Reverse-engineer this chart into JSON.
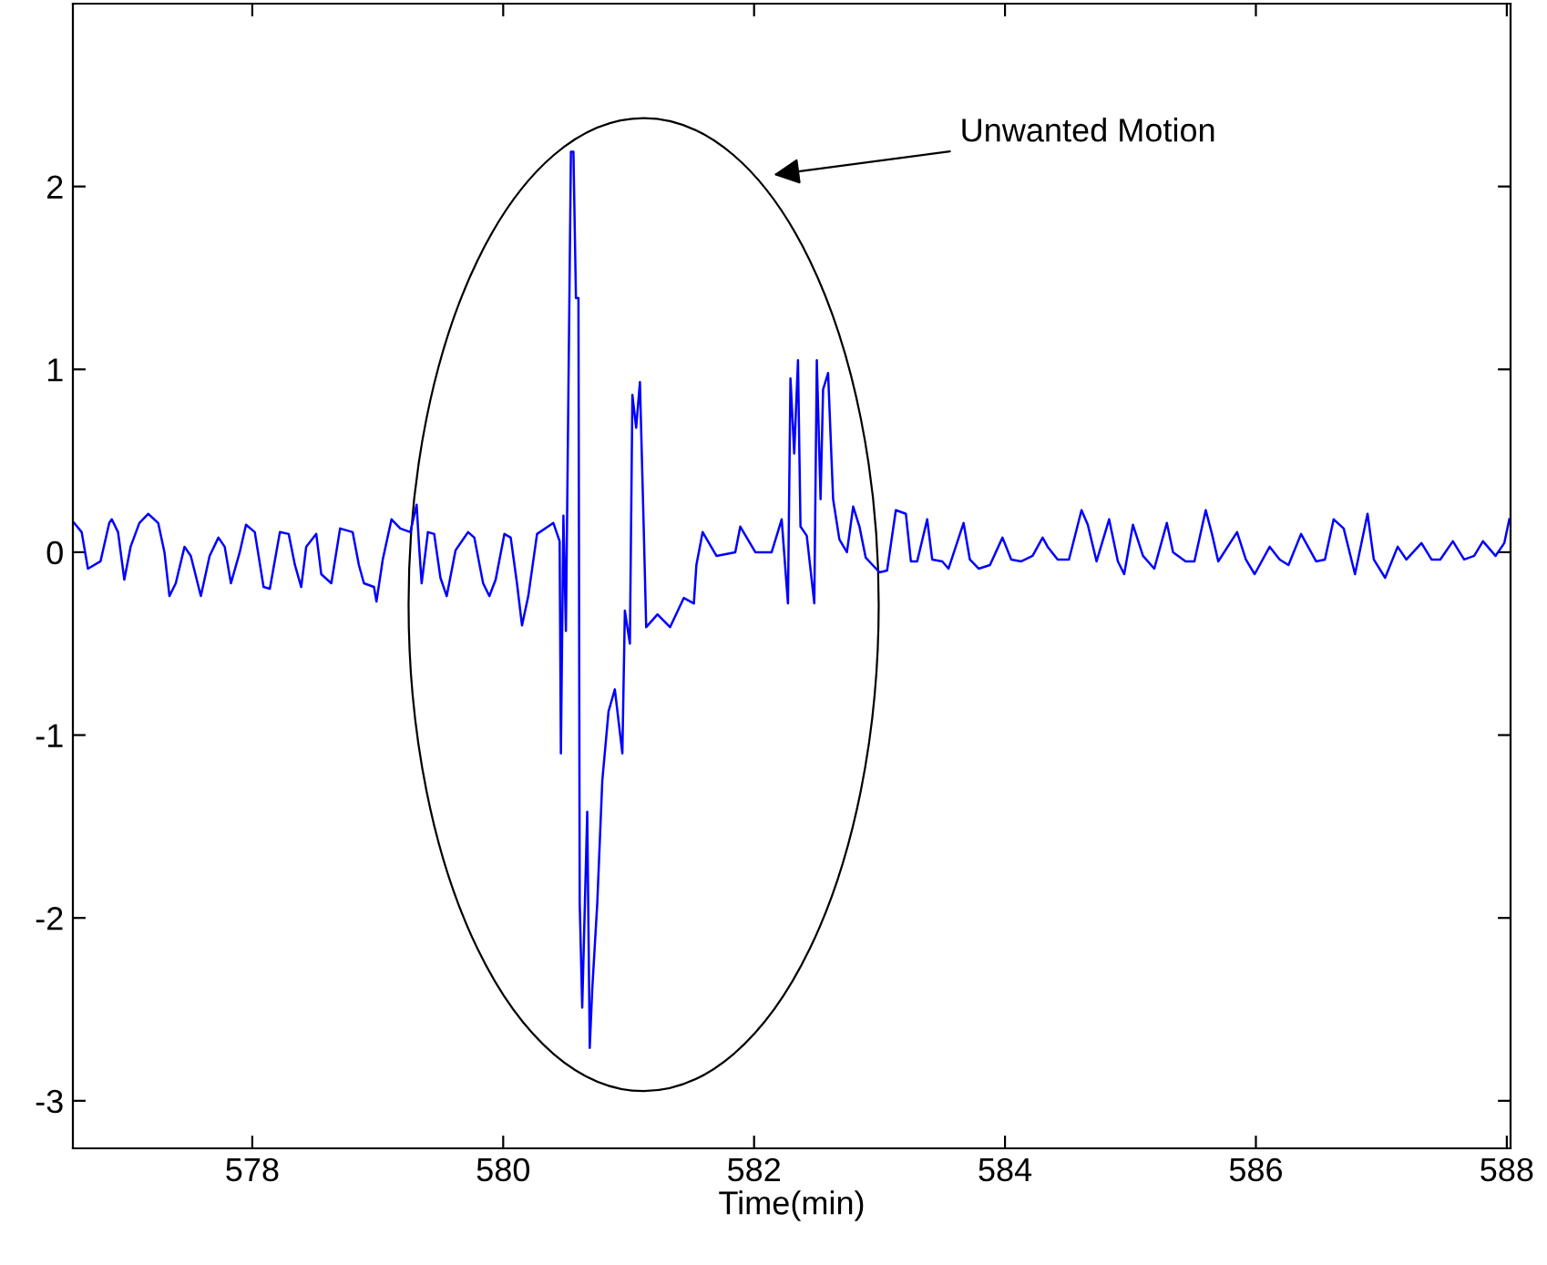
{
  "chart_data": {
    "type": "line",
    "xlabel": "Time(min)",
    "xlim": [
      576.57,
      588.03
    ],
    "xticks": [
      578,
      580,
      582,
      584,
      586,
      588
    ],
    "ylim": [
      -3.26,
      3.0
    ],
    "yticks": [
      -3,
      -2,
      -1,
      0,
      1,
      2
    ],
    "grid": false,
    "legend": false,
    "marker": "none",
    "line_style": "solid",
    "annotations": [
      "Unwanted Motion"
    ],
    "series": [
      {
        "color": "#0000ff",
        "x": [
          576.58,
          576.64,
          576.69,
          576.79,
          576.86,
          576.88,
          576.93,
          576.98,
          577.03,
          577.1,
          577.17,
          577.25,
          577.3,
          577.34,
          577.39,
          577.46,
          577.51,
          577.59,
          577.66,
          577.73,
          577.78,
          577.83,
          577.9,
          577.95,
          578.02,
          578.09,
          578.14,
          578.22,
          578.29,
          578.34,
          578.39,
          578.43,
          578.51,
          578.55,
          578.63,
          578.7,
          578.8,
          578.85,
          578.89,
          578.97,
          578.99,
          579.04,
          579.11,
          579.18,
          579.26,
          579.31,
          579.33,
          579.35,
          579.4,
          579.45,
          579.5,
          579.55,
          579.62,
          579.72,
          579.77,
          579.84,
          579.89,
          579.94,
          580.01,
          580.06,
          580.11,
          580.15,
          580.2,
          580.27,
          580.4,
          580.45,
          580.46,
          580.48,
          580.5,
          580.54,
          580.56,
          580.58,
          580.6,
          580.61,
          580.63,
          580.67,
          580.69,
          580.71,
          580.75,
          580.79,
          580.84,
          580.89,
          580.95,
          580.97,
          581.01,
          581.03,
          581.06,
          581.09,
          581.12,
          581.14,
          581.23,
          581.33,
          581.44,
          581.52,
          581.54,
          581.59,
          581.7,
          581.85,
          581.89,
          582.01,
          582.14,
          582.22,
          582.27,
          582.29,
          582.32,
          582.35,
          582.37,
          582.42,
          582.48,
          582.5,
          582.53,
          582.55,
          582.59,
          582.63,
          582.68,
          582.74,
          582.79,
          582.84,
          582.89,
          583.0,
          583.06,
          583.13,
          583.21,
          583.25,
          583.3,
          583.38,
          583.42,
          583.5,
          583.55,
          583.67,
          583.72,
          583.79,
          583.88,
          583.98,
          584.05,
          584.13,
          584.22,
          584.3,
          584.34,
          584.42,
          584.51,
          584.61,
          584.66,
          584.73,
          584.83,
          584.9,
          584.95,
          585.02,
          585.1,
          585.19,
          585.29,
          585.34,
          585.44,
          585.51,
          585.6,
          585.65,
          585.7,
          585.85,
          585.92,
          585.99,
          586.11,
          586.19,
          586.26,
          586.36,
          586.4,
          586.48,
          586.55,
          586.62,
          586.7,
          586.79,
          586.89,
          586.94,
          587.03,
          587.13,
          587.2,
          587.32,
          587.4,
          587.47,
          587.57,
          587.66,
          587.74,
          587.81,
          587.91,
          587.98,
          588.02
        ],
        "values": [
          0.16,
          0.11,
          -0.09,
          -0.05,
          0.16,
          0.18,
          0.11,
          -0.15,
          0.03,
          0.16,
          0.21,
          0.16,
          0.0,
          -0.24,
          -0.17,
          0.03,
          -0.02,
          -0.24,
          -0.02,
          0.08,
          0.03,
          -0.17,
          0.0,
          0.15,
          0.11,
          -0.19,
          -0.2,
          0.11,
          0.1,
          -0.07,
          -0.19,
          0.03,
          0.1,
          -0.12,
          -0.17,
          0.13,
          0.11,
          -0.07,
          -0.17,
          -0.19,
          -0.27,
          -0.04,
          0.18,
          0.13,
          0.11,
          0.26,
          0.03,
          -0.17,
          0.11,
          0.1,
          -0.14,
          -0.24,
          0.01,
          0.11,
          0.08,
          -0.17,
          -0.24,
          -0.15,
          0.1,
          0.08,
          -0.17,
          -0.4,
          -0.24,
          0.1,
          0.16,
          0.06,
          -1.1,
          0.2,
          -0.43,
          2.19,
          2.19,
          1.39,
          1.39,
          -1.92,
          -2.49,
          -1.42,
          -2.71,
          -2.39,
          -1.92,
          -1.25,
          -0.87,
          -0.75,
          -1.1,
          -0.32,
          -0.5,
          0.86,
          0.68,
          0.93,
          0.14,
          -0.41,
          -0.34,
          -0.41,
          -0.25,
          -0.28,
          -0.07,
          0.11,
          -0.02,
          0.0,
          0.14,
          0.0,
          0.0,
          0.18,
          -0.28,
          0.95,
          0.54,
          1.05,
          0.14,
          0.09,
          -0.28,
          1.05,
          0.29,
          0.89,
          0.98,
          0.29,
          0.07,
          0.0,
          0.25,
          0.14,
          -0.03,
          -0.11,
          -0.1,
          0.23,
          0.21,
          -0.05,
          -0.05,
          0.18,
          -0.04,
          -0.05,
          -0.09,
          0.16,
          -0.04,
          -0.09,
          -0.07,
          0.08,
          -0.04,
          -0.05,
          -0.02,
          0.08,
          0.03,
          -0.04,
          -0.04,
          0.23,
          0.15,
          -0.05,
          0.18,
          -0.05,
          -0.12,
          0.15,
          -0.02,
          -0.09,
          0.16,
          0.0,
          -0.05,
          -0.05,
          0.23,
          0.1,
          -0.05,
          0.11,
          -0.04,
          -0.12,
          0.03,
          -0.04,
          -0.07,
          0.1,
          0.05,
          -0.05,
          -0.04,
          0.18,
          0.13,
          -0.12,
          0.21,
          -0.04,
          -0.14,
          0.03,
          -0.04,
          0.05,
          -0.04,
          -0.04,
          0.06,
          -0.04,
          -0.02,
          0.06,
          -0.02,
          0.05,
          0.18
        ]
      }
    ]
  }
}
